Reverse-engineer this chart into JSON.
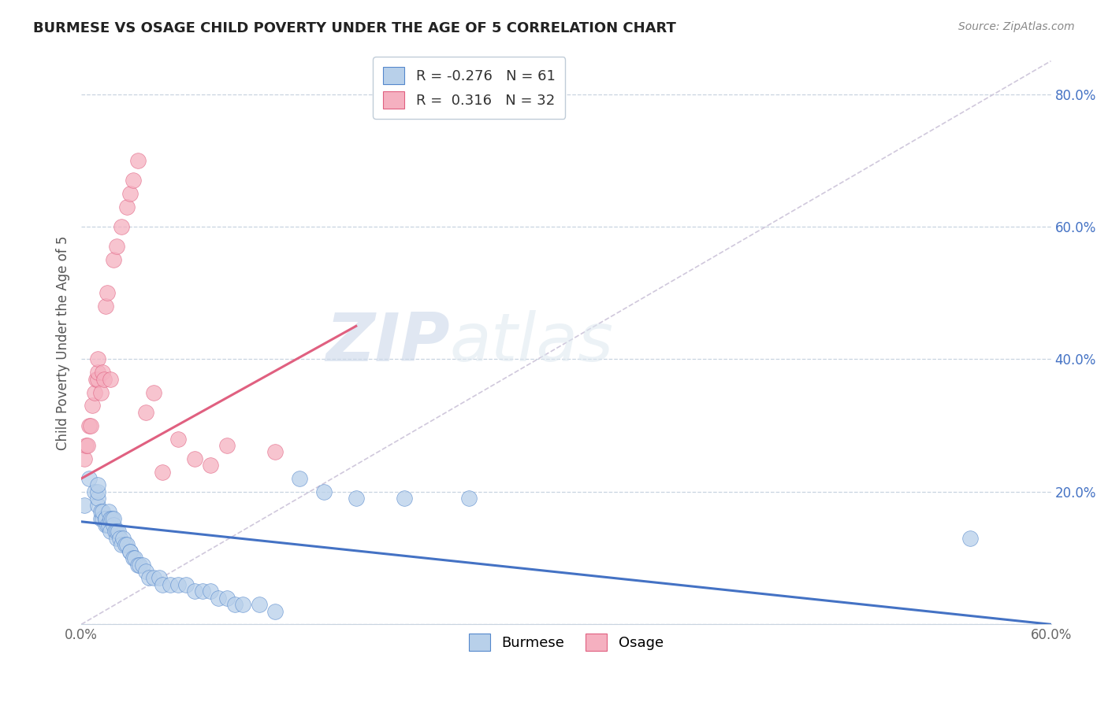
{
  "title": "BURMESE VS OSAGE CHILD POVERTY UNDER THE AGE OF 5 CORRELATION CHART",
  "source": "Source: ZipAtlas.com",
  "ylabel": "Child Poverty Under the Age of 5",
  "x_min": 0.0,
  "x_max": 0.6,
  "y_min": 0.0,
  "y_max": 0.85,
  "x_ticks": [
    0.0,
    0.6
  ],
  "x_tick_labels": [
    "0.0%",
    "60.0%"
  ],
  "y_ticks": [
    0.0,
    0.2,
    0.4,
    0.6,
    0.8
  ],
  "y_tick_labels": [
    "",
    "20.0%",
    "40.0%",
    "60.0%",
    "80.0%"
  ],
  "burmese_R": -0.276,
  "burmese_N": 61,
  "osage_R": 0.316,
  "osage_N": 32,
  "burmese_color": "#b8d0ea",
  "osage_color": "#f5b0c0",
  "burmese_edge_color": "#5588cc",
  "osage_edge_color": "#e06080",
  "burmese_line_color": "#4472c4",
  "osage_line_color": "#e06080",
  "diagonal_color": "#d0c8dc",
  "watermark_zip": "ZIP",
  "watermark_atlas": "atlas",
  "burmese_x": [
    0.002,
    0.005,
    0.008,
    0.01,
    0.01,
    0.01,
    0.01,
    0.012,
    0.012,
    0.013,
    0.013,
    0.015,
    0.015,
    0.015,
    0.016,
    0.017,
    0.017,
    0.018,
    0.018,
    0.019,
    0.02,
    0.02,
    0.021,
    0.022,
    0.022,
    0.023,
    0.024,
    0.025,
    0.026,
    0.027,
    0.028,
    0.03,
    0.03,
    0.032,
    0.033,
    0.035,
    0.036,
    0.038,
    0.04,
    0.042,
    0.045,
    0.048,
    0.05,
    0.055,
    0.06,
    0.065,
    0.07,
    0.075,
    0.08,
    0.085,
    0.09,
    0.095,
    0.1,
    0.11,
    0.12,
    0.135,
    0.15,
    0.17,
    0.2,
    0.24,
    0.55
  ],
  "burmese_y": [
    0.18,
    0.22,
    0.2,
    0.18,
    0.19,
    0.2,
    0.21,
    0.16,
    0.17,
    0.16,
    0.17,
    0.15,
    0.16,
    0.16,
    0.15,
    0.15,
    0.17,
    0.14,
    0.16,
    0.16,
    0.15,
    0.16,
    0.14,
    0.13,
    0.14,
    0.14,
    0.13,
    0.12,
    0.13,
    0.12,
    0.12,
    0.11,
    0.11,
    0.1,
    0.1,
    0.09,
    0.09,
    0.09,
    0.08,
    0.07,
    0.07,
    0.07,
    0.06,
    0.06,
    0.06,
    0.06,
    0.05,
    0.05,
    0.05,
    0.04,
    0.04,
    0.03,
    0.03,
    0.03,
    0.02,
    0.22,
    0.2,
    0.19,
    0.19,
    0.19,
    0.13
  ],
  "osage_x": [
    0.002,
    0.003,
    0.004,
    0.005,
    0.006,
    0.007,
    0.008,
    0.009,
    0.01,
    0.01,
    0.01,
    0.012,
    0.013,
    0.014,
    0.015,
    0.016,
    0.018,
    0.02,
    0.022,
    0.025,
    0.028,
    0.03,
    0.032,
    0.035,
    0.04,
    0.045,
    0.05,
    0.06,
    0.07,
    0.08,
    0.09,
    0.12
  ],
  "osage_y": [
    0.25,
    0.27,
    0.27,
    0.3,
    0.3,
    0.33,
    0.35,
    0.37,
    0.37,
    0.38,
    0.4,
    0.35,
    0.38,
    0.37,
    0.48,
    0.5,
    0.37,
    0.55,
    0.57,
    0.6,
    0.63,
    0.65,
    0.67,
    0.7,
    0.32,
    0.35,
    0.23,
    0.28,
    0.25,
    0.24,
    0.27,
    0.26
  ],
  "burmese_line_x0": 0.0,
  "burmese_line_y0": 0.155,
  "burmese_line_x1": 0.6,
  "burmese_line_y1": 0.0,
  "osage_line_x0": 0.0,
  "osage_line_y0": 0.22,
  "osage_line_x1": 0.17,
  "osage_line_y1": 0.45
}
